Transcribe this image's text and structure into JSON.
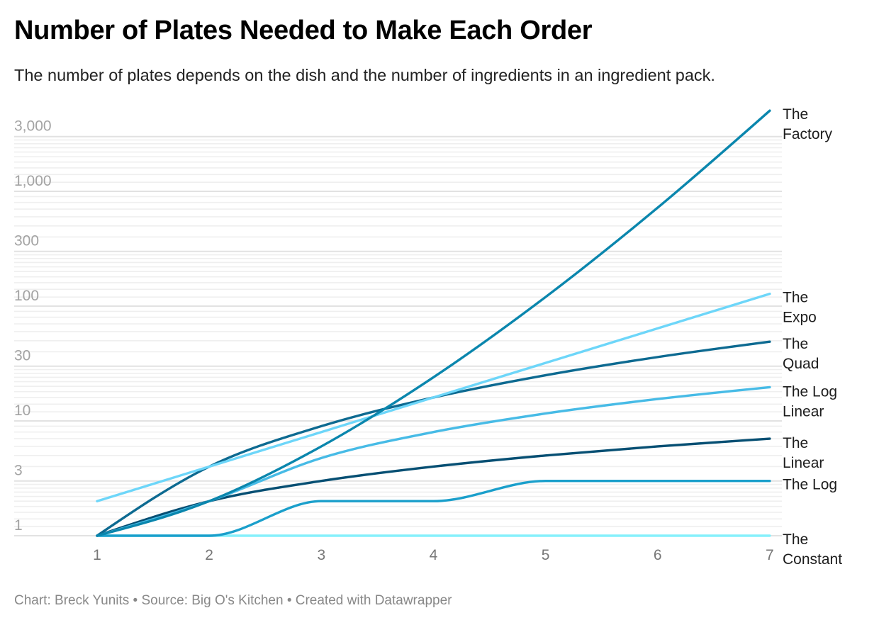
{
  "header": {
    "title": "Number of Plates Needed to Make Each Order",
    "subtitle": "The number of plates depends on the dish and the number of ingredients in an ingredient pack."
  },
  "footer": {
    "text": "Chart: Breck Yunits • Source: Big O's Kitchen • Created with Datawrapper"
  },
  "chart_data": {
    "type": "line",
    "title": "Number of Plates Needed to Make Each Order",
    "subtitle": "The number of plates depends on the dish and the number of ingredients in an ingredient pack.",
    "xlabel": "",
    "ylabel": "",
    "y_scale": "log",
    "ylim": [
      1,
      5040
    ],
    "xlim": [
      1,
      7
    ],
    "grid": true,
    "legend": "direct labels at right end of lines",
    "x": [
      1,
      2,
      3,
      4,
      5,
      6,
      7
    ],
    "x_ticks": [
      "1",
      "2",
      "3",
      "4",
      "5",
      "6",
      "7"
    ],
    "y_ticks": [
      {
        "value": 1,
        "label": "1"
      },
      {
        "value": 3,
        "label": "3"
      },
      {
        "value": 10,
        "label": "10"
      },
      {
        "value": 30,
        "label": "30"
      },
      {
        "value": 100,
        "label": "100"
      },
      {
        "value": 300,
        "label": "300"
      },
      {
        "value": 1000,
        "label": "1,000"
      },
      {
        "value": 3000,
        "label": "3,000"
      }
    ],
    "series": [
      {
        "name": "The Factory",
        "label_lines": [
          "The",
          "Factory"
        ],
        "color": "#0a86ad",
        "values": [
          1,
          2,
          6,
          24,
          120,
          720,
          5040
        ]
      },
      {
        "name": "The Expo",
        "label_lines": [
          "The",
          "Expo"
        ],
        "color": "#6dd6f9",
        "values": [
          2,
          4,
          8,
          16,
          32,
          64,
          128
        ]
      },
      {
        "name": "The Quad",
        "label_lines": [
          "The",
          "Quad"
        ],
        "color": "#0d6a91",
        "values": [
          1,
          4,
          9,
          16,
          25,
          36,
          49
        ]
      },
      {
        "name": "The Log Linear",
        "label_lines": [
          "The Log",
          "Linear"
        ],
        "color": "#47bbe6",
        "values": [
          1,
          2,
          4.75,
          8,
          11.61,
          15.51,
          19.65
        ]
      },
      {
        "name": "The Linear",
        "label_lines": [
          "The",
          "Linear"
        ],
        "color": "#064f73",
        "values": [
          1,
          2,
          3,
          4,
          5,
          6,
          7
        ]
      },
      {
        "name": "The Log",
        "label_lines": [
          "The Log"
        ],
        "color": "#1a9fcb",
        "values": [
          1,
          1,
          2,
          2,
          3,
          3,
          3
        ]
      },
      {
        "name": "The Constant",
        "label_lines": [
          "The",
          "Constant"
        ],
        "color": "#86f0fc",
        "values": [
          1,
          1,
          1,
          1,
          1,
          1,
          1
        ]
      }
    ]
  }
}
